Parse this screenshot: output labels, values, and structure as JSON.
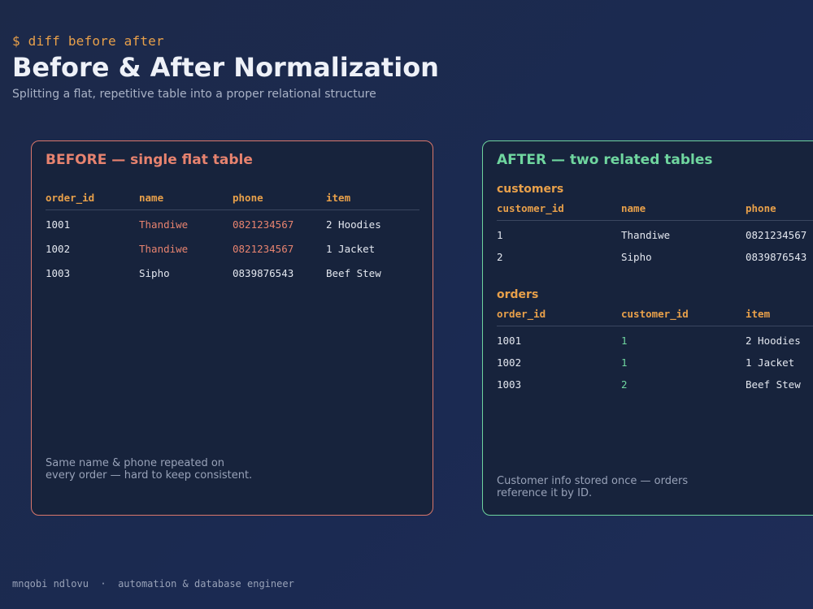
{
  "header": {
    "prompt": "$ diff before after",
    "title": "Before & After Normalization",
    "subtitle": "Splitting a flat, repetitive table into a proper relational structure"
  },
  "before": {
    "title": "BEFORE — single flat table",
    "columns": [
      "order_id",
      "name",
      "phone",
      "item"
    ],
    "rows": [
      [
        "1001",
        "Thandiwe",
        "0821234567",
        "2 Hoodies"
      ],
      [
        "1002",
        "Thandiwe",
        "0821234567",
        "1 Jacket"
      ],
      [
        "1003",
        "Sipho",
        "0839876543",
        "Beef Stew"
      ]
    ],
    "note_line1": "Same name & phone repeated on",
    "note_line2": "every order — hard to keep consistent.",
    "border_color": "#d9776b"
  },
  "after": {
    "title": "AFTER — two related tables",
    "customers": {
      "title": "customers",
      "columns": [
        "customer_id",
        "name",
        "phone"
      ],
      "rows": [
        [
          "1",
          "Thandiwe",
          "0821234567"
        ],
        [
          "2",
          "Sipho",
          "0839876543"
        ]
      ]
    },
    "orders": {
      "title": "orders",
      "columns": [
        "order_id",
        "customer_id",
        "item"
      ],
      "rows": [
        [
          "1001",
          "1",
          "2 Hoodies"
        ],
        [
          "1002",
          "1",
          "1 Jacket"
        ],
        [
          "1003",
          "2",
          "Beef Stew"
        ]
      ]
    },
    "note_line1": "Customer info stored once — orders",
    "note_line2": "reference it by ID.",
    "border_color": "#6dd39e"
  },
  "footer": {
    "author": "mnqobi ndlovu",
    "separator": "·",
    "role": "automation & database engineer"
  },
  "colors": {
    "accent_orange": "#e8a04a",
    "duplicate_red": "#e7836f",
    "foreign_key_green": "#6fd69f"
  }
}
